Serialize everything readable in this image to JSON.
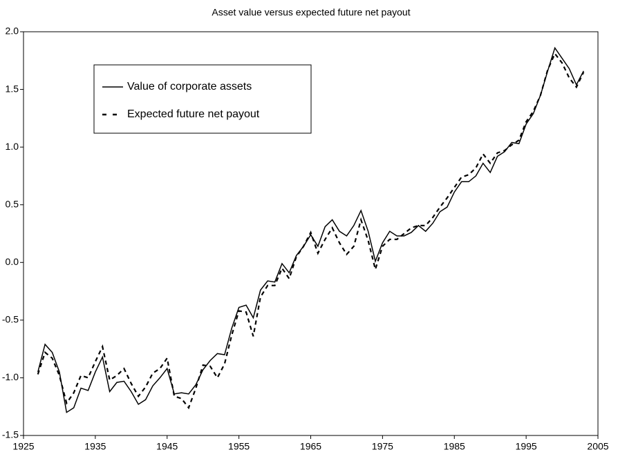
{
  "chart_data": {
    "type": "line",
    "title": "Asset value versus expected future net payout",
    "x": [
      1927,
      1928,
      1929,
      1930,
      1931,
      1932,
      1933,
      1934,
      1935,
      1936,
      1937,
      1938,
      1939,
      1940,
      1941,
      1942,
      1943,
      1944,
      1945,
      1946,
      1947,
      1948,
      1949,
      1950,
      1951,
      1952,
      1953,
      1954,
      1955,
      1956,
      1957,
      1958,
      1959,
      1960,
      1961,
      1962,
      1963,
      1964,
      1965,
      1966,
      1967,
      1968,
      1969,
      1970,
      1971,
      1972,
      1973,
      1974,
      1975,
      1976,
      1977,
      1978,
      1979,
      1980,
      1981,
      1982,
      1983,
      1984,
      1985,
      1986,
      1987,
      1988,
      1989,
      1990,
      1991,
      1992,
      1993,
      1994,
      1995,
      1996,
      1997,
      1998,
      1999,
      2000,
      2001,
      2002,
      2003
    ],
    "series": [
      {
        "name": "Value of corporate assets",
        "color": "#000000",
        "line_style": "solid",
        "values": [
          -0.95,
          -0.71,
          -0.78,
          -0.95,
          -1.3,
          -1.26,
          -1.09,
          -1.11,
          -0.95,
          -0.82,
          -1.12,
          -1.04,
          -1.03,
          -1.12,
          -1.23,
          -1.19,
          -1.07,
          -1.0,
          -0.92,
          -1.14,
          -1.13,
          -1.14,
          -1.06,
          -0.93,
          -0.85,
          -0.79,
          -0.8,
          -0.57,
          -0.39,
          -0.37,
          -0.48,
          -0.24,
          -0.16,
          -0.17,
          -0.01,
          -0.09,
          0.06,
          0.14,
          0.24,
          0.14,
          0.31,
          0.37,
          0.27,
          0.23,
          0.32,
          0.45,
          0.27,
          0.01,
          0.17,
          0.27,
          0.23,
          0.23,
          0.26,
          0.32,
          0.27,
          0.34,
          0.44,
          0.48,
          0.61,
          0.7,
          0.7,
          0.75,
          0.86,
          0.78,
          0.92,
          0.96,
          1.04,
          1.03,
          1.2,
          1.29,
          1.45,
          1.66,
          1.86,
          1.77,
          1.68,
          1.54,
          1.66
        ]
      },
      {
        "name": "Expected future net payout",
        "color": "#000000",
        "line_style": "dashed",
        "values": [
          -0.97,
          -0.78,
          -0.83,
          -0.98,
          -1.22,
          -1.13,
          -0.98,
          -1.0,
          -0.86,
          -0.73,
          -1.02,
          -0.98,
          -0.92,
          -1.05,
          -1.16,
          -1.08,
          -0.96,
          -0.92,
          -0.83,
          -1.16,
          -1.18,
          -1.26,
          -1.09,
          -0.89,
          -0.9,
          -1.0,
          -0.88,
          -0.63,
          -0.42,
          -0.43,
          -0.64,
          -0.3,
          -0.2,
          -0.2,
          -0.05,
          -0.14,
          0.05,
          0.14,
          0.26,
          0.08,
          0.2,
          0.3,
          0.17,
          0.07,
          0.14,
          0.37,
          0.19,
          -0.06,
          0.14,
          0.2,
          0.2,
          0.25,
          0.3,
          0.32,
          0.32,
          0.39,
          0.48,
          0.56,
          0.65,
          0.74,
          0.76,
          0.82,
          0.94,
          0.86,
          0.95,
          0.97,
          1.02,
          1.06,
          1.22,
          1.31,
          1.45,
          1.67,
          1.81,
          1.73,
          1.6,
          1.52,
          1.65
        ]
      }
    ],
    "xlim": [
      1925,
      2005
    ],
    "xticks": [
      1925,
      1935,
      1945,
      1955,
      1965,
      1975,
      1985,
      1995,
      2005
    ],
    "ylim": [
      -1.5,
      2.0
    ],
    "yticks": [
      {
        "value": 2.0,
        "label": "2.0"
      },
      1.5,
      {
        "value": 1.0,
        "label": "1.0"
      },
      0.5,
      {
        "value": 0,
        "label": "0.0"
      },
      -0.5,
      {
        "value": -1.0,
        "label": "-1.0"
      },
      -1.5
    ],
    "grid": false,
    "legend": "upper left"
  }
}
